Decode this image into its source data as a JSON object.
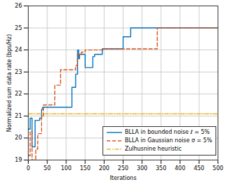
{
  "chart_data": {
    "type": "line",
    "x_label": "Iterations",
    "y_label": "Normalized sum data rate (bps/Hz)",
    "xlim": [
      0,
      500
    ],
    "xticks": [
      0,
      50,
      100,
      150,
      200,
      250,
      300,
      350,
      400,
      450,
      500
    ],
    "ylim": [
      19,
      26
    ],
    "yticks": [
      19,
      20,
      21,
      22,
      23,
      24,
      25,
      26
    ],
    "grid": true,
    "legend": "lower right",
    "series": [
      {
        "name": "BLLA in bounded noise ℓ = 5%",
        "color": "#0072BD",
        "line_style": "solid",
        "x": [
          0,
          5,
          10,
          18,
          30,
          35,
          38,
          115,
          125,
          130,
          133,
          135,
          150,
          170,
          175,
          195,
          250,
          270,
          500
        ],
        "values": [
          20.4,
          20.9,
          19.6,
          20.8,
          20.9,
          21.3,
          21.4,
          22.3,
          22.9,
          24.0,
          23.6,
          23.8,
          23.2,
          23.7,
          23.8,
          24.05,
          24.6,
          25.0,
          25.0
        ]
      },
      {
        "name": "BLLA in Gaussian noise σ = 5%",
        "color": "#D95319",
        "line_style": "dashed",
        "x": [
          0,
          5,
          10,
          20,
          25,
          35,
          40,
          70,
          85,
          125,
          130,
          140,
          150,
          200,
          340,
          500
        ],
        "values": [
          19.2,
          20.3,
          19.0,
          19.5,
          20.2,
          21.0,
          21.5,
          22.4,
          23.1,
          23.3,
          23.8,
          23.9,
          24.0,
          24.05,
          25.0,
          25.0
        ]
      },
      {
        "name": "Zulhusnine heuristic",
        "color": "#EDB120",
        "line_style": "dashdot",
        "x": [
          0,
          500
        ],
        "values": [
          21.1,
          21.1
        ]
      }
    ]
  }
}
